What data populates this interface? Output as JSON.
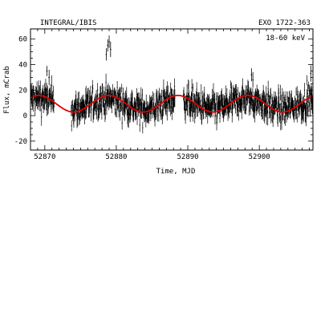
{
  "chart_data": {
    "type": "scatter",
    "title_left": "INTEGRAL/IBIS",
    "title_right": "EXO 1722-363",
    "energy_band": "18-60 keV",
    "xlabel": "Time, MJD",
    "ylabel": "Flux, mCrab",
    "xlim": [
      52868.0,
      52907.5
    ],
    "ylim": [
      -27,
      68
    ],
    "x_ticks": [
      52870,
      52880,
      52890,
      52900
    ],
    "y_ticks": [
      -20,
      0,
      20,
      40,
      60
    ],
    "grid": false,
    "legend": "none",
    "colors": {
      "data": "#000000",
      "model": "#e00000",
      "frame": "#000000"
    },
    "model_curve": {
      "name": "",
      "form": "sinusoid",
      "x_range": [
        52868.0,
        52907.5
      ],
      "mean": 9.3,
      "amplitude": 6.5,
      "period_days": 9.74,
      "phase_peak_mjd": 52878.9
    },
    "observation_segments": [
      {
        "x_start": 52868.1,
        "x_end": 52871.3,
        "base_flux": 10,
        "scatter": 8
      },
      {
        "x_start": 52873.7,
        "x_end": 52888.2,
        "base_flux": 8,
        "scatter": 8
      },
      {
        "x_start": 52889.4,
        "x_end": 52907.5,
        "base_flux": 9,
        "scatter": 8
      }
    ],
    "flare_points": [
      {
        "x": 52870.3,
        "y": 35
      },
      {
        "x": 52870.6,
        "y": 30
      },
      {
        "x": 52878.6,
        "y": 48
      },
      {
        "x": 52878.8,
        "y": 55
      },
      {
        "x": 52879.0,
        "y": 58
      },
      {
        "x": 52879.2,
        "y": 52
      },
      {
        "x": 52898.9,
        "y": 32
      },
      {
        "x": 52899.1,
        "y": 28
      },
      {
        "x": 52907.2,
        "y": 33
      }
    ]
  }
}
